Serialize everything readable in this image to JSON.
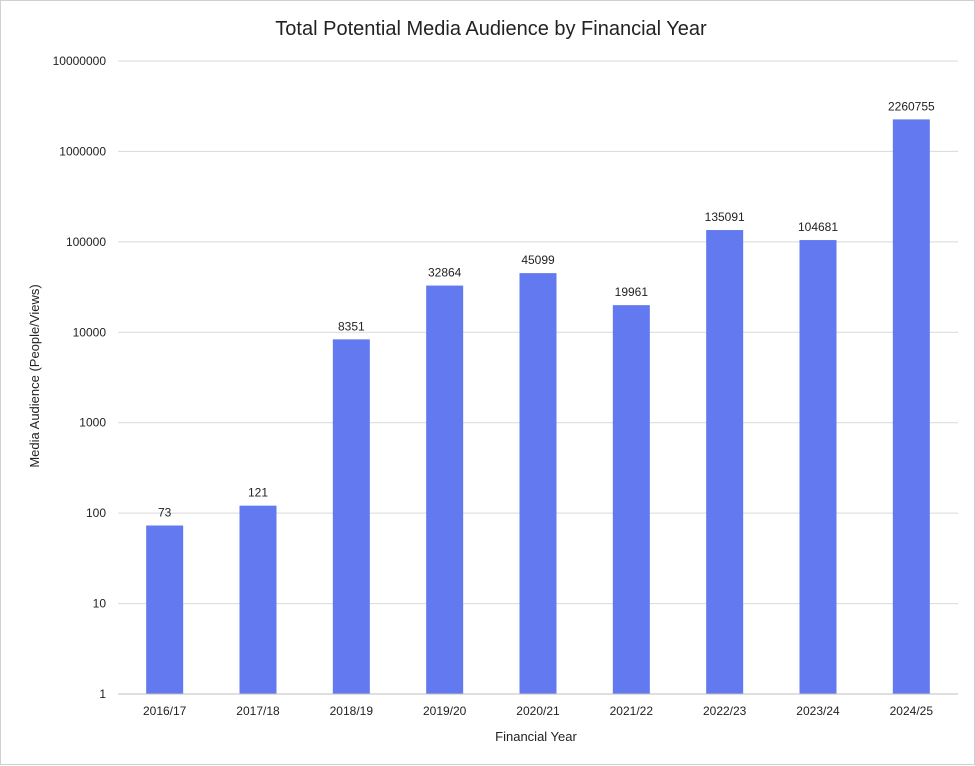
{
  "chart_data": {
    "type": "bar",
    "title": "Total Potential Media Audience by Financial Year",
    "xlabel": "Financial Year",
    "ylabel": "Media Audience (People/Views)",
    "yscale": "log",
    "ylim": [
      1,
      10000000
    ],
    "yticks": [
      "1",
      "10",
      "100",
      "1000",
      "10000",
      "100000",
      "1000000",
      "10000000"
    ],
    "grid": true,
    "legend": "none",
    "bar_color": "#6379ef",
    "categories": [
      "2016/17",
      "2017/18",
      "2018/19",
      "2019/20",
      "2020/21",
      "2021/22",
      "2022/23",
      "2023/24",
      "2024/25"
    ],
    "values": [
      73,
      121,
      8351,
      32864,
      45099,
      19961,
      135091,
      104681,
      2260755
    ],
    "data_labels": [
      "73",
      "121",
      "8351",
      "32864",
      "45099",
      "19961",
      "135091",
      "104681",
      "2260755"
    ]
  }
}
